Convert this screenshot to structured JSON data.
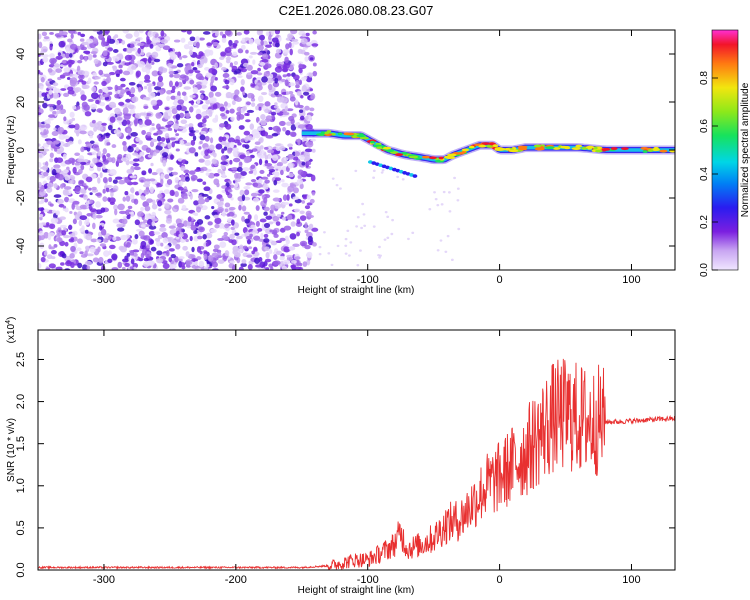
{
  "chart_data": [
    {
      "type": "heatmap",
      "title": "C2E1.2026.080.08.23.G07",
      "xlabel": "Height of straight line (km)",
      "ylabel": "Frequency (Hz)",
      "xlim": [
        -350,
        133
      ],
      "ylim": [
        -50,
        50
      ],
      "xticks": [
        -300,
        -200,
        -100,
        0,
        100
      ],
      "yticks": [
        -40,
        -20,
        0,
        20,
        40
      ],
      "noise_region_x": [
        -350,
        -140
      ],
      "ridge": {
        "x": [
          -150,
          -130,
          -118,
          -105,
          -95,
          -85,
          -72,
          -60,
          -50,
          -42,
          -35,
          -25,
          -15,
          -5,
          0,
          10,
          20,
          30,
          40,
          60,
          80,
          100,
          133
        ],
        "y": [
          7,
          7,
          6,
          6,
          3,
          0,
          -2,
          -3,
          -4,
          -4,
          -2,
          0,
          2,
          2,
          0,
          0,
          1,
          1,
          1,
          1,
          0,
          0,
          0
        ]
      },
      "colorbar": {
        "label": "Normalized spectral amplitude",
        "range": [
          0,
          1
        ],
        "ticks": [
          0.0,
          0.2,
          0.4,
          0.6,
          0.8
        ]
      }
    },
    {
      "type": "line",
      "xlabel": "Height of straight line (km)",
      "ylabel": "SNR (10 * v/v)",
      "y_scale_label": "(x10",
      "y_scale_exponent": "4",
      "y_scale_close": ")",
      "xlim": [
        -350,
        133
      ],
      "ylim": [
        0,
        2.85
      ],
      "xticks": [
        -300,
        -200,
        -100,
        0,
        100
      ],
      "yticks": [
        0.0,
        0.5,
        1.0,
        1.5,
        2.0,
        2.5
      ],
      "series": [
        {
          "name": "SNR",
          "color": "#e83030",
          "x": [
            -350,
            -300,
            -250,
            -200,
            -150,
            -130,
            -120,
            -110,
            -100,
            -90,
            -80,
            -75,
            -70,
            -60,
            -50,
            -40,
            -30,
            -20,
            -10,
            0,
            10,
            20,
            30,
            40,
            50,
            60,
            70,
            75,
            80,
            90,
            100,
            110,
            120,
            133
          ],
          "y": [
            0.03,
            0.03,
            0.03,
            0.03,
            0.03,
            0.05,
            0.08,
            0.12,
            0.12,
            0.2,
            0.3,
            0.45,
            0.25,
            0.3,
            0.38,
            0.55,
            0.6,
            0.8,
            1.0,
            1.1,
            1.25,
            1.4,
            1.6,
            1.8,
            1.85,
            1.8,
            1.75,
            1.78,
            1.76,
            1.76,
            1.77,
            1.78,
            1.79,
            1.8
          ]
        }
      ]
    }
  ]
}
